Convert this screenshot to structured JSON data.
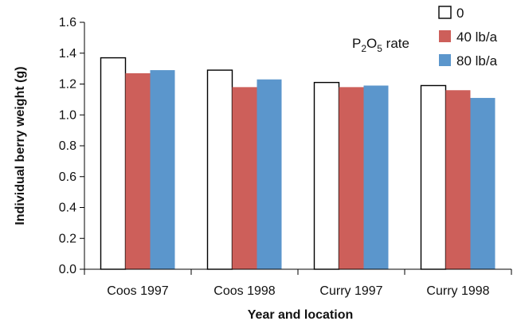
{
  "chart_data": {
    "type": "bar",
    "xlabel": "Year and location",
    "ylabel": "Individual berry weight (g)",
    "ylim": [
      0,
      1.6
    ],
    "yticks": [
      "0.0",
      "0.2",
      "0.4",
      "0.6",
      "0.8",
      "1.0",
      "1.2",
      "1.4",
      "1.6"
    ],
    "categories": [
      "Coos 1997",
      "Coos 1998",
      "Curry 1997",
      "Curry 1998"
    ],
    "legend_title": {
      "prefix": "P",
      "sub1": "2",
      "mid": "O",
      "sub2": "5",
      "suffix": " rate"
    },
    "legend_position": "top-right",
    "grid": false,
    "series": [
      {
        "name": "0",
        "color": "#ffffff",
        "stroke": "#000000",
        "values": [
          1.37,
          1.29,
          1.21,
          1.19
        ]
      },
      {
        "name": "40 lb/a",
        "color": "#cd5f5a",
        "stroke": "none",
        "values": [
          1.27,
          1.18,
          1.18,
          1.16
        ]
      },
      {
        "name": "80 lb/a",
        "color": "#5b96cc",
        "stroke": "none",
        "values": [
          1.29,
          1.23,
          1.19,
          1.11
        ]
      }
    ]
  }
}
